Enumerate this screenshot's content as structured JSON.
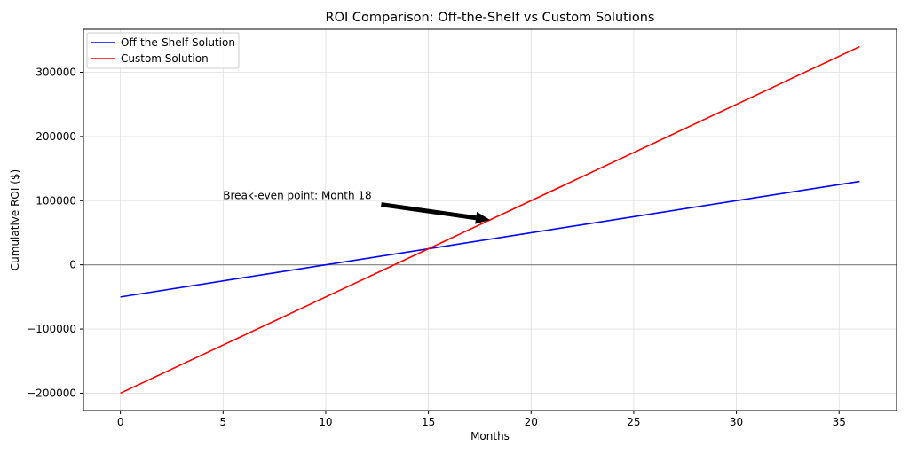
{
  "chart_data": {
    "type": "line",
    "title": "ROI Comparison: Off-the-Shelf vs Custom Solutions",
    "xlabel": "Months",
    "ylabel": "Cumulative ROI ($)",
    "xlim": [
      -1.8,
      37.8
    ],
    "ylim": [
      -227000,
      367000
    ],
    "xticks": [
      0,
      5,
      10,
      15,
      20,
      25,
      30,
      35
    ],
    "yticks": [
      -200000,
      -100000,
      0,
      100000,
      200000,
      300000
    ],
    "ytick_labels": [
      "−200000",
      "−100000",
      "0",
      "100000",
      "200000",
      "300000"
    ],
    "grid": true,
    "legend_position": "top-left",
    "zero_line": true,
    "colors": {
      "off_the_shelf": "#0000ff",
      "custom": "#ff0000",
      "zero_line": "#808080",
      "grid": "#e0e0e0"
    },
    "series": [
      {
        "name": "Off-the-Shelf Solution",
        "color": "#0000ff",
        "x": [
          0,
          36
        ],
        "y": [
          -50000,
          130000
        ]
      },
      {
        "name": "Custom Solution",
        "color": "#ff0000",
        "x": [
          0,
          36
        ],
        "y": [
          -200000,
          340000
        ]
      }
    ],
    "annotation": {
      "text": "Break-even point: Month 18",
      "xy": [
        18,
        70000
      ],
      "xytext": [
        5,
        100000
      ]
    }
  }
}
